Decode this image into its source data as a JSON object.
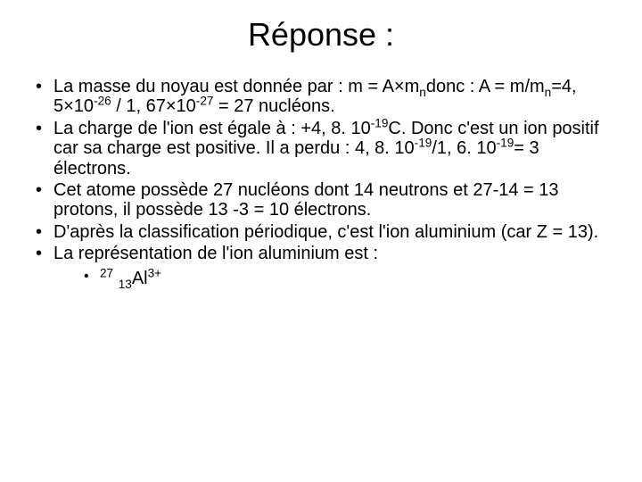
{
  "title": "Réponse :",
  "bullets": {
    "b1_a": "La masse du noyau est donnée par : m = A×m",
    "b1_sub1": "n",
    "b1_b": "donc : A = m/m",
    "b1_sub2": "n",
    "b1_c": "=4, 5×10",
    "b1_sup1": "-26",
    "b1_d": " / 1, 67×10",
    "b1_sup2": "-27",
    "b1_e": " = 27 nucléons.",
    "b2_a": "La charge de l'ion est égale à : +4, 8. 10",
    "b2_sup1": "-19",
    "b2_b": "C. Donc c'est un ion positif car sa charge est positive. Il a perdu : 4, 8. 10",
    "b2_sup2": "-19",
    "b2_c": "/1, 6. 10",
    "b2_sup3": "-19",
    "b2_d": "= 3 électrons.",
    "b3": "Cet atome possède 27 nucléons dont 14 neutrons et 27-14 = 13 protons, il possède 13 -3 = 10 électrons.",
    "b4": "D'après la classification périodique, c'est l'ion aluminium (car Z = 13).",
    "b5": " La représentation de l'ion aluminium est :",
    "sub_sup1": "27",
    "sub_sp": " ",
    "sub_sub1": "13",
    "sub_mid": "Al",
    "sub_sup2": "3+"
  }
}
